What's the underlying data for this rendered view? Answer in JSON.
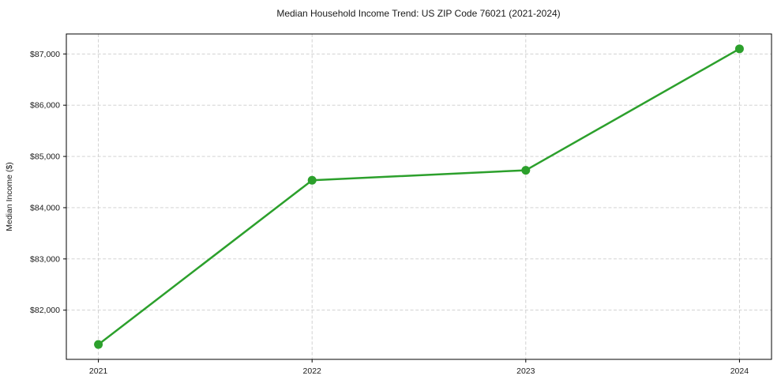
{
  "chart_data": {
    "type": "line",
    "title": "Median Household Income Trend: US ZIP Code 76021 (2021-2024)",
    "xlabel": "",
    "ylabel": "Median Income ($)",
    "series": [
      {
        "name": "Median Household Income",
        "x": [
          2021,
          2022,
          2023,
          2024
        ],
        "values": [
          81330,
          84535,
          84730,
          87100
        ]
      }
    ],
    "xticks": {
      "values": [
        2021,
        2022,
        2023,
        2024
      ],
      "labels": [
        "2021",
        "2022",
        "2023",
        "2024"
      ]
    },
    "yticks": {
      "values": [
        82000,
        83000,
        84000,
        85000,
        86000,
        87000
      ],
      "labels": [
        "$82,000",
        "$83,000",
        "$84,000",
        "$85,000",
        "$86,000",
        "$87,000"
      ]
    },
    "xlim": [
      2020.85,
      2024.15
    ],
    "ylim": [
      81040,
      87390
    ],
    "grid": true,
    "grid_style": "dashed",
    "legend_position": "none",
    "line_color": "#2ca02c",
    "marker": "circle",
    "marker_radius": 5.5,
    "grid_color": "#cccccc",
    "background_color": "#ffffff",
    "border_color": "#000000"
  }
}
